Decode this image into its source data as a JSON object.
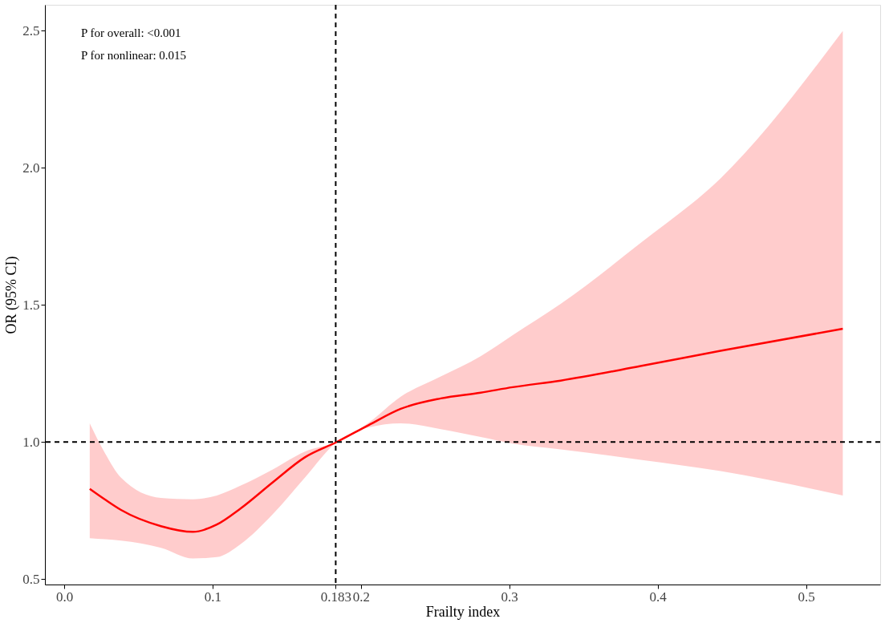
{
  "chart_data": {
    "type": "line",
    "xlabel": "Frailty index",
    "ylabel": "OR (95% CI)",
    "annotations": [
      "P for overall: <0.001",
      "P for nonlinear: 0.015"
    ],
    "x": [
      0.0172,
      0.0275,
      0.0383,
      0.0652,
      0.0868,
      0.1029,
      0.119,
      0.1406,
      0.1622,
      0.1837,
      0.2053,
      0.2268,
      0.2538,
      0.2807,
      0.3023,
      0.3346,
      0.3885,
      0.4424,
      0.5248
    ],
    "series": [
      {
        "color": "#ff0000",
        "values": [
          0.829,
          0.79,
          0.752,
          0.693,
          0.672,
          0.699,
          0.758,
          0.853,
          0.944,
          1.0,
          1.062,
          1.121,
          1.159,
          1.18,
          1.2,
          1.224,
          1.277,
          1.333,
          1.413
        ],
        "lower": [
          0.649,
          0.645,
          0.64,
          0.614,
          0.575,
          0.58,
          0.628,
          0.737,
          0.87,
          1.0,
          1.053,
          1.068,
          1.047,
          1.018,
          0.994,
          0.973,
          0.935,
          0.894,
          0.805
        ],
        "upper": [
          1.068,
          0.959,
          0.87,
          0.796,
          0.791,
          0.805,
          0.841,
          0.9,
          0.965,
          1.0,
          1.071,
          1.165,
          1.239,
          1.313,
          1.39,
          1.504,
          1.726,
          1.962,
          2.5
        ]
      }
    ],
    "xlim": [
      -0.013,
      0.55
    ],
    "ylim": [
      0.48,
      2.595
    ],
    "xticks": [
      {
        "value": 0,
        "label": "0.0"
      },
      0.1,
      0.183,
      0.2,
      0.3,
      0.4,
      0.5
    ],
    "yticks": [
      0.5,
      {
        "value": 1,
        "label": "1.0"
      },
      1.5,
      {
        "value": 2,
        "label": "2.0"
      },
      2.5
    ],
    "ref_lines": [
      {
        "axis": "x",
        "value": 0.183,
        "color": "#000000",
        "line_style": "dashed"
      },
      {
        "axis": "y",
        "value": 1.0,
        "color": "#000000",
        "line_style": "dashed"
      }
    ],
    "grid": false,
    "marker": "none",
    "line_style": "solid"
  }
}
